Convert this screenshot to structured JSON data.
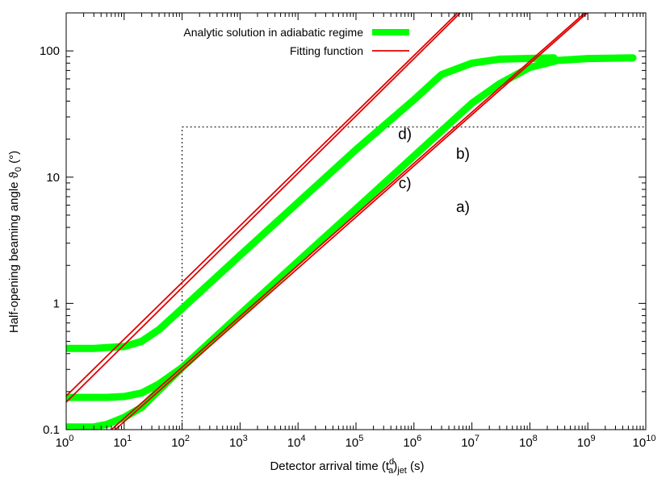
{
  "chart_data": {
    "type": "line",
    "xscale": "log",
    "yscale": "log",
    "xlim": [
      1,
      10000000000
    ],
    "ylim": [
      0.1,
      200
    ],
    "xlabel": "Detector arrival time (t_a^d)_jet (s)",
    "ylabel": "Half-opening beaming angle ϑ0 (°)",
    "xlabel_parts": {
      "prefix": "Detector arrival time (t",
      "sub": "a",
      "sup": "d",
      "mid": ")",
      "sub2": "jet",
      "suffix": " (s)"
    },
    "ylabel_parts": {
      "prefix": "Half-opening beaming angle ϑ",
      "sub": "0",
      "suffix": " (°)"
    },
    "x_ticks": [
      {
        "value": 1,
        "base": "10",
        "exp": "0"
      },
      {
        "value": 10,
        "base": "10",
        "exp": "1"
      },
      {
        "value": 100,
        "base": "10",
        "exp": "2"
      },
      {
        "value": 1000,
        "base": "10",
        "exp": "3"
      },
      {
        "value": 10000,
        "base": "10",
        "exp": "4"
      },
      {
        "value": 100000,
        "base": "10",
        "exp": "5"
      },
      {
        "value": 1000000,
        "base": "10",
        "exp": "6"
      },
      {
        "value": 10000000,
        "base": "10",
        "exp": "7"
      },
      {
        "value": 100000000,
        "base": "10",
        "exp": "8"
      },
      {
        "value": 1000000000,
        "base": "10",
        "exp": "9"
      },
      {
        "value": 10000000000,
        "base": "10",
        "exp": "10"
      }
    ],
    "y_ticks": [
      {
        "value": 0.1,
        "label": "0.1"
      },
      {
        "value": 1,
        "label": "1"
      },
      {
        "value": 10,
        "label": "10"
      },
      {
        "value": 100,
        "label": "100"
      }
    ],
    "legend": {
      "position": "top-right",
      "entries": [
        {
          "label": "Analytic solution in adiabatic regime",
          "color": "#00ff00"
        },
        {
          "label": "Fitting function",
          "color": "#e00000"
        }
      ]
    },
    "series": [
      {
        "id": "upper-analytic",
        "kind": "analytic",
        "color": "#00ff00",
        "points": [
          [
            1,
            0.44
          ],
          [
            3,
            0.44
          ],
          [
            10,
            0.455
          ],
          [
            20,
            0.5
          ],
          [
            40,
            0.62
          ],
          [
            100,
            0.91
          ],
          [
            1000,
            2.4
          ],
          [
            10000,
            6.3
          ],
          [
            100000,
            16.5
          ],
          [
            1000000,
            41
          ],
          [
            3000000,
            65
          ],
          [
            10000000,
            80
          ],
          [
            30000000,
            86
          ],
          [
            260000000,
            88
          ]
        ]
      },
      {
        "id": "upper-inner-analytic",
        "kind": "analytic",
        "color": "#00ff00",
        "points": [
          [
            1,
            0.18
          ],
          [
            5,
            0.18
          ],
          [
            10,
            0.183
          ],
          [
            20,
            0.195
          ],
          [
            40,
            0.23
          ],
          [
            100,
            0.31
          ]
        ]
      },
      {
        "id": "lower-analytic",
        "kind": "analytic",
        "color": "#00ff00",
        "points": [
          [
            1,
            0.105
          ],
          [
            3,
            0.105
          ],
          [
            5,
            0.11
          ],
          [
            10,
            0.125
          ],
          [
            20,
            0.15
          ],
          [
            100,
            0.31
          ],
          [
            1000,
            0.82
          ],
          [
            10000,
            2.15
          ],
          [
            100000,
            5.6
          ],
          [
            1000000,
            14.7
          ],
          [
            10000000,
            38.5
          ],
          [
            30000000,
            55
          ],
          [
            100000000,
            74
          ],
          [
            300000000,
            84
          ],
          [
            1000000000,
            87
          ],
          [
            6000000000,
            88
          ]
        ]
      },
      {
        "id": "fit-d",
        "kind": "fit",
        "color": "#e00000",
        "points": [
          [
            1,
            0.185
          ],
          [
            6300000,
            210
          ]
        ]
      },
      {
        "id": "fit-c",
        "kind": "fit",
        "color": "#e00000",
        "points": [
          [
            1,
            0.165
          ],
          [
            7000000,
            210
          ]
        ]
      },
      {
        "id": "fit-b",
        "kind": "fit",
        "color": "#e00000",
        "points": [
          [
            6,
            0.1
          ],
          [
            1000000000,
            210
          ]
        ]
      },
      {
        "id": "fit-a",
        "kind": "fit",
        "color": "#e00000",
        "points": [
          [
            7,
            0.1
          ],
          [
            1100000000,
            210
          ]
        ]
      }
    ],
    "reference_lines": [
      {
        "orientation": "vertical",
        "x": 100,
        "from": 0.1,
        "to": 25
      },
      {
        "orientation": "horizontal",
        "y": 25,
        "from": 100,
        "to": 10000000000
      }
    ],
    "annotations": [
      {
        "text": "d)",
        "x": 700000,
        "y": 20
      },
      {
        "text": "b)",
        "x": 7000000,
        "y": 14
      },
      {
        "text": "c)",
        "x": 700000,
        "y": 8.2
      },
      {
        "text": "a)",
        "x": 7000000,
        "y": 5.3
      }
    ],
    "colors": {
      "analytic": "#00ff00",
      "fit": "#e00000",
      "reference": "#000000"
    }
  }
}
